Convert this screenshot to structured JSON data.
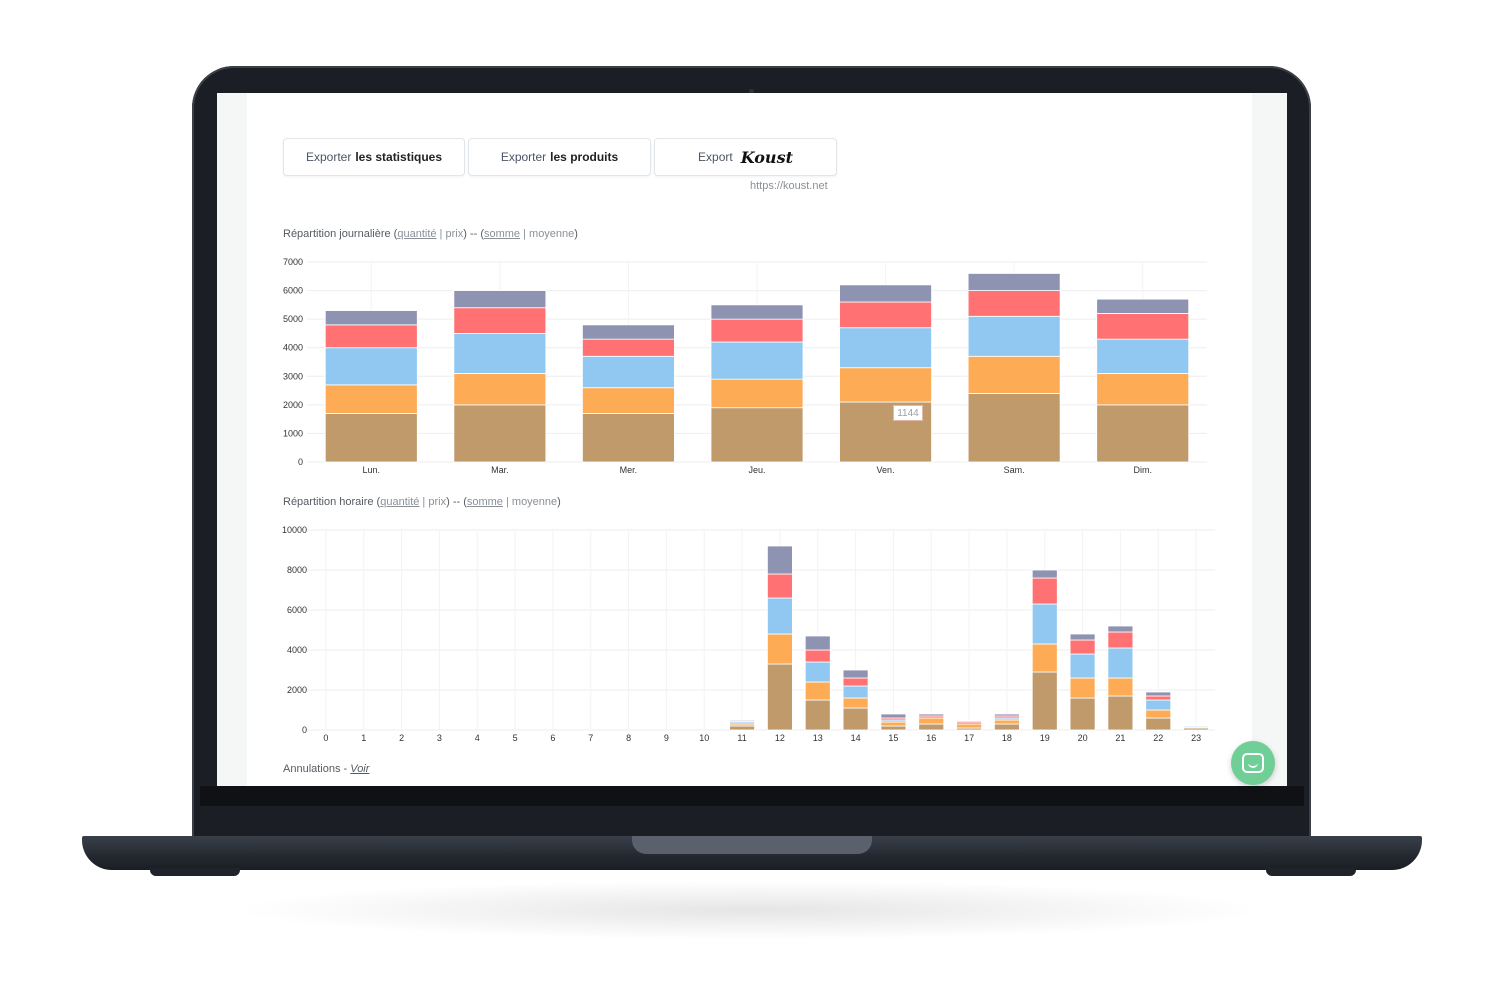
{
  "toolbar": {
    "export_stats_prefix": "Exporter",
    "export_stats_bold": "les statistiques",
    "export_products_prefix": "Exporter",
    "export_products_bold": "les produits",
    "export_brand_prefix": "Export",
    "export_brand_name": "Koust",
    "brand_url": "https://koust.net"
  },
  "daily_section": {
    "title_prefix": "Répartition journalière (",
    "opt_quantity": "quantité",
    "sep1": " | ",
    "opt_price": "prix",
    "mid": ") -- (",
    "opt_sum": "somme",
    "sep2": " | ",
    "opt_avg": "moyenne",
    "suffix": ")",
    "tooltip_value": "1144"
  },
  "hourly_section": {
    "title_prefix": "Répartition horaire (",
    "opt_quantity": "quantité",
    "sep1": " | ",
    "opt_price": "prix",
    "mid": ") -- (",
    "opt_sum": "somme",
    "sep2": " | ",
    "opt_avg": "moyenne",
    "suffix": ")"
  },
  "cancellations": {
    "label": "Annulations - ",
    "link": "Voir"
  },
  "colors": [
    "#c19a6b",
    "#fdab55",
    "#90c8f2",
    "#ff7172",
    "#8e93b2"
  ],
  "chart_data": [
    {
      "type": "bar",
      "stacked": true,
      "categories": [
        "Lun.",
        "Mar.",
        "Mer.",
        "Jeu.",
        "Ven.",
        "Sam.",
        "Dim."
      ],
      "ylim": [
        0,
        7000
      ],
      "yticks": [
        0,
        1000,
        2000,
        3000,
        4000,
        5000,
        6000,
        7000
      ],
      "grid": true,
      "series": [
        {
          "values": [
            1700,
            2000,
            1700,
            1900,
            2100,
            2400,
            2000
          ]
        },
        {
          "values": [
            1000,
            1100,
            900,
            1000,
            1200,
            1300,
            1100
          ]
        },
        {
          "values": [
            1300,
            1400,
            1100,
            1300,
            1400,
            1400,
            1200
          ]
        },
        {
          "values": [
            800,
            900,
            600,
            800,
            900,
            900,
            900
          ]
        },
        {
          "values": [
            500,
            600,
            500,
            500,
            600,
            600,
            500
          ]
        }
      ]
    },
    {
      "type": "bar",
      "stacked": true,
      "categories": [
        "0",
        "1",
        "2",
        "3",
        "4",
        "5",
        "6",
        "7",
        "8",
        "9",
        "10",
        "11",
        "12",
        "13",
        "14",
        "15",
        "16",
        "17",
        "18",
        "19",
        "20",
        "21",
        "22",
        "23"
      ],
      "ylim": [
        0,
        10000
      ],
      "yticks": [
        0,
        2000,
        4000,
        6000,
        8000,
        10000
      ],
      "grid": true,
      "series": [
        {
          "values": [
            0,
            0,
            0,
            0,
            0,
            0,
            0,
            0,
            0,
            0,
            0,
            200,
            3300,
            1500,
            1100,
            200,
            300,
            100,
            300,
            2900,
            1600,
            1700,
            600,
            100
          ]
        },
        {
          "values": [
            0,
            0,
            0,
            0,
            0,
            0,
            0,
            0,
            0,
            0,
            0,
            100,
            1500,
            900,
            500,
            200,
            300,
            200,
            200,
            1400,
            1000,
            900,
            400,
            50
          ]
        },
        {
          "values": [
            0,
            0,
            0,
            0,
            0,
            0,
            0,
            0,
            0,
            0,
            0,
            100,
            1800,
            1000,
            600,
            100,
            0,
            0,
            100,
            2000,
            1200,
            1500,
            500,
            50
          ]
        },
        {
          "values": [
            0,
            0,
            0,
            0,
            0,
            0,
            0,
            0,
            0,
            0,
            0,
            50,
            1200,
            600,
            400,
            100,
            100,
            100,
            100,
            1300,
            700,
            800,
            200,
            0
          ]
        },
        {
          "values": [
            0,
            0,
            0,
            0,
            0,
            0,
            0,
            0,
            0,
            0,
            0,
            50,
            1400,
            700,
            400,
            200,
            100,
            50,
            100,
            400,
            300,
            300,
            200,
            0
          ]
        }
      ]
    }
  ]
}
